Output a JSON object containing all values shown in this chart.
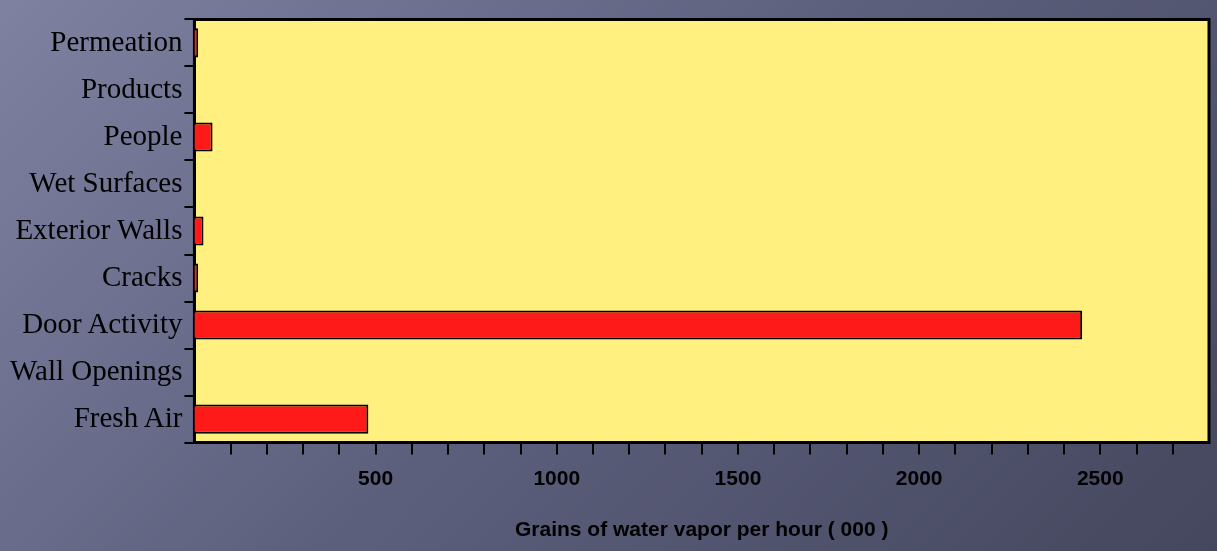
{
  "chart_data": {
    "type": "bar",
    "orientation": "horizontal",
    "xlabel": "Grains of water vapor per hour ( 000 )",
    "categories": [
      "Permeation",
      "Products",
      "People",
      "Wet Surfaces",
      "Exterior Walls",
      "Cracks",
      "Door Activity",
      "Wall Openings",
      "Fresh Air"
    ],
    "values": [
      10,
      0,
      50,
      0,
      25,
      10,
      2450,
      0,
      480
    ],
    "color": "#ff1a1a",
    "xlim": [
      0,
      2800
    ],
    "xticks": [
      {
        "value": 100,
        "label": null
      },
      {
        "value": 200,
        "label": null
      },
      {
        "value": 300,
        "label": null
      },
      {
        "value": 400,
        "label": null
      },
      500,
      {
        "value": 600,
        "label": null
      },
      {
        "value": 700,
        "label": null
      },
      {
        "value": 800,
        "label": null
      },
      {
        "value": 900,
        "label": null
      },
      1000,
      {
        "value": 1100,
        "label": null
      },
      {
        "value": 1200,
        "label": null
      },
      {
        "value": 1300,
        "label": null
      },
      {
        "value": 1400,
        "label": null
      },
      1500,
      {
        "value": 1600,
        "label": null
      },
      {
        "value": 1700,
        "label": null
      },
      {
        "value": 1800,
        "label": null
      },
      {
        "value": 1900,
        "label": null
      },
      2000,
      {
        "value": 2100,
        "label": null
      },
      {
        "value": 2200,
        "label": null
      },
      {
        "value": 2300,
        "label": null
      },
      {
        "value": 2400,
        "label": null
      },
      2500,
      {
        "value": 2600,
        "label": null
      },
      {
        "value": 2700,
        "label": null
      }
    ],
    "grid": false,
    "legend": false
  }
}
